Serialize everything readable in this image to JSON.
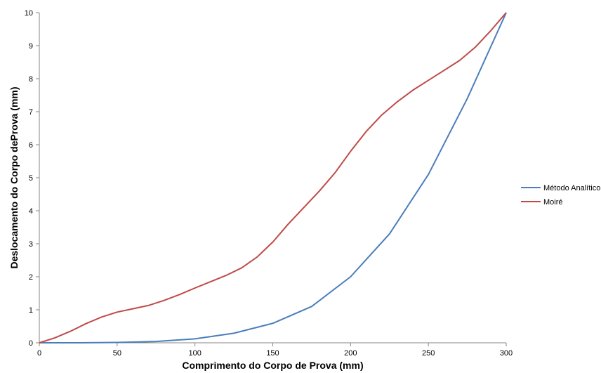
{
  "chart_data": {
    "type": "line",
    "title": "",
    "xlabel": "Comprimento do Corpo de Prova (mm)",
    "ylabel": "Deslocamento do Corpo deProva (mm)",
    "xlim": [
      0,
      300
    ],
    "ylim": [
      0,
      10
    ],
    "xticks": [
      "0",
      "50",
      "100",
      "150",
      "200",
      "250",
      "300"
    ],
    "yticks": [
      "0",
      "1",
      "2",
      "3",
      "4",
      "5",
      "6",
      "7",
      "8",
      "9",
      "10"
    ],
    "grid": false,
    "legend_position": "right",
    "series": [
      {
        "name": "Método Analítico",
        "color": "#4a7ebb",
        "x": [
          0,
          25,
          50,
          75,
          100,
          125,
          150,
          175,
          200,
          225,
          250,
          275,
          300
        ],
        "y": [
          0,
          0.0,
          0.01,
          0.04,
          0.12,
          0.29,
          0.59,
          1.1,
          2.0,
          3.3,
          5.1,
          7.4,
          10
        ]
      },
      {
        "name": "Moiré",
        "color": "#be4b48",
        "x": [
          0,
          10,
          20,
          30,
          40,
          50,
          60,
          70,
          80,
          90,
          100,
          110,
          120,
          130,
          140,
          150,
          160,
          170,
          180,
          190,
          200,
          210,
          220,
          230,
          240,
          250,
          260,
          270,
          280,
          290,
          300
        ],
        "y": [
          0,
          0.15,
          0.35,
          0.58,
          0.78,
          0.93,
          1.03,
          1.13,
          1.28,
          1.46,
          1.66,
          1.85,
          2.04,
          2.27,
          2.6,
          3.05,
          3.6,
          4.1,
          4.6,
          5.15,
          5.8,
          6.4,
          6.9,
          7.3,
          7.65,
          7.95,
          8.25,
          8.55,
          8.95,
          9.45,
          10
        ]
      }
    ]
  }
}
